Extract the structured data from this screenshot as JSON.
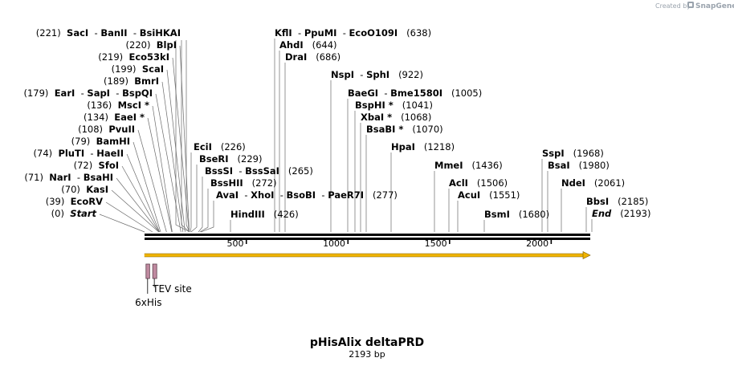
{
  "credit": {
    "text": "Created by",
    "brand": "SnapGene"
  },
  "title": "pHisAlix deltaPRD",
  "subtitle": "2193 bp",
  "sequence_length": 2193,
  "ruler_ticks": [
    {
      "bp": 500,
      "label": "500"
    },
    {
      "bp": 1000,
      "label": "1000"
    },
    {
      "bp": 1500,
      "label": "1500"
    },
    {
      "bp": 2000,
      "label": "2000"
    }
  ],
  "site_labels": [
    {
      "row": 0,
      "enzymes": [
        "Start"
      ],
      "italic": true,
      "before": "(0)",
      "after": "",
      "sites": [
        0
      ]
    },
    {
      "row": 1,
      "enzymes": [
        "EcoRV"
      ],
      "before": "(39)",
      "after": "",
      "sites": [
        39
      ]
    },
    {
      "row": 2,
      "enzymes": [
        "KasI"
      ],
      "before": "(70)",
      "after": "",
      "sites": [
        70
      ]
    },
    {
      "row": 3,
      "enzymes": [
        "NarI",
        "BsaHI"
      ],
      "before": "(71)",
      "after": "",
      "sites": [
        71
      ]
    },
    {
      "row": 4,
      "enzymes": [
        "SfoI"
      ],
      "before": "(72)",
      "after": "",
      "sites": [
        72
      ]
    },
    {
      "row": 5,
      "enzymes": [
        "PluTI",
        "HaeII"
      ],
      "before": "(74)",
      "after": "",
      "sites": [
        74
      ]
    },
    {
      "row": 6,
      "enzymes": [
        "BamHI"
      ],
      "before": "(79)",
      "after": "",
      "sites": [
        79
      ]
    },
    {
      "row": 7,
      "enzymes": [
        "PvuII"
      ],
      "before": "(108)",
      "after": "",
      "sites": [
        108
      ]
    },
    {
      "row": 8,
      "enzymes": [
        "EaeI *"
      ],
      "before": "(134)",
      "after": "",
      "sites": [
        134
      ]
    },
    {
      "row": 9,
      "enzymes": [
        "MscI *"
      ],
      "before": "(136)",
      "after": "",
      "sites": [
        136
      ]
    },
    {
      "row": 10,
      "enzymes": [
        "EarI",
        "SapI",
        "BspQI"
      ],
      "before": "(179)",
      "after": "",
      "sites": [
        179
      ]
    },
    {
      "row": 11,
      "enzymes": [
        "BmrI"
      ],
      "before": "(189)",
      "after": "",
      "sites": [
        189
      ]
    },
    {
      "row": 12,
      "enzymes": [
        "ScaI"
      ],
      "before": "(199)",
      "after": "",
      "sites": [
        199
      ]
    },
    {
      "row": 13,
      "enzymes": [
        "Eco53kI"
      ],
      "before": "(219)",
      "after": "",
      "sites": [
        219
      ]
    },
    {
      "row": 14,
      "enzymes": [
        "BlpI"
      ],
      "before": "(220)",
      "after": "",
      "sites": [
        220
      ]
    },
    {
      "row": 15,
      "enzymes": [
        "SacI",
        "BanII",
        "BsiHKAI"
      ],
      "before": "(221)",
      "after": "",
      "sites": [
        221,
        221,
        221
      ]
    },
    {
      "row": 16,
      "enzymes": [
        "HindIII"
      ],
      "before": "",
      "after": "(426)",
      "sites": [
        426
      ]
    },
    {
      "row": 17,
      "enzymes": [
        "AvaI",
        "XhoI",
        "BsoBI",
        "PaeR7I"
      ],
      "before": "",
      "after": "(277)",
      "sites": [
        277
      ]
    },
    {
      "row": 18,
      "enzymes": [
        "BssHII"
      ],
      "before": "",
      "after": "(272)",
      "sites": [
        272
      ]
    },
    {
      "row": 19,
      "enzymes": [
        "BssSI",
        "BssSaI"
      ],
      "before": "",
      "after": "(265)",
      "sites": [
        265
      ]
    },
    {
      "row": 20,
      "enzymes": [
        "BseRI"
      ],
      "before": "",
      "after": "(229)",
      "sites": [
        229
      ]
    },
    {
      "row": 21,
      "enzymes": [
        "EciI"
      ],
      "before": "",
      "after": "(226)",
      "sites": [
        226
      ]
    },
    {
      "row": 22,
      "enzymes": [
        "DraI"
      ],
      "before": "",
      "after": "(686)",
      "sites": [
        686
      ]
    },
    {
      "row": 23,
      "enzymes": [
        "AhdI"
      ],
      "before": "",
      "after": "(644)",
      "sites": [
        644
      ]
    },
    {
      "row": 24,
      "enzymes": [
        "KflI",
        "PpuMI",
        "EcoO109I"
      ],
      "before": "",
      "after": "(638)",
      "sites": [
        638
      ]
    },
    {
      "row": 25,
      "enzymes": [
        "NspI",
        "SphI"
      ],
      "before": "",
      "after": "(922)",
      "sites": [
        922
      ]
    },
    {
      "row": 26,
      "enzymes": [
        "BaeGI",
        "Bme1580I"
      ],
      "before": "",
      "after": "(1005)",
      "sites": [
        1005
      ]
    },
    {
      "row": 27,
      "enzymes": [
        "BspHI *"
      ],
      "before": "",
      "after": "(1041)",
      "sites": [
        1041
      ]
    },
    {
      "row": 28,
      "enzymes": [
        "XbaI *"
      ],
      "before": "",
      "after": "(1068)",
      "sites": [
        1068
      ]
    },
    {
      "row": 29,
      "enzymes": [
        "BsaBI *"
      ],
      "before": "",
      "after": "(1070)",
      "sites": [
        1070
      ]
    },
    {
      "row": 30,
      "enzymes": [
        "HpaI"
      ],
      "before": "",
      "after": "(1218)",
      "sites": [
        1218
      ]
    },
    {
      "row": 31,
      "enzymes": [
        "MmeI"
      ],
      "before": "",
      "after": "(1436)",
      "sites": [
        1436
      ]
    },
    {
      "row": 32,
      "enzymes": [
        "AclI"
      ],
      "before": "",
      "after": "(1506)",
      "sites": [
        1506
      ]
    },
    {
      "row": 33,
      "enzymes": [
        "AcuI"
      ],
      "before": "",
      "after": "(1551)",
      "sites": [
        1551
      ]
    },
    {
      "row": 34,
      "enzymes": [
        "BsmI"
      ],
      "before": "",
      "after": "(1680)",
      "sites": [
        1680
      ]
    },
    {
      "row": 35,
      "enzymes": [
        "SspI"
      ],
      "before": "",
      "after": "(1968)",
      "sites": [
        1968
      ]
    },
    {
      "row": 36,
      "enzymes": [
        "BsaI"
      ],
      "before": "",
      "after": "(1980)",
      "sites": [
        1980
      ]
    },
    {
      "row": 37,
      "enzymes": [
        "NdeI"
      ],
      "before": "",
      "after": "(2061)",
      "sites": [
        2061
      ]
    },
    {
      "row": 38,
      "enzymes": [
        "BbsI"
      ],
      "before": "",
      "after": "(2185)",
      "sites": [
        2185
      ]
    },
    {
      "row": 39,
      "enzymes": [
        "End"
      ],
      "italic": true,
      "before": "",
      "after": "(2193)",
      "sites": [
        2193
      ]
    }
  ],
  "features": [
    {
      "name": "6xHis",
      "start": 15,
      "end": 33,
      "color": "#c08aa0"
    },
    {
      "name": "TEV site",
      "start": 48,
      "end": 68,
      "color": "#c08aa0"
    }
  ],
  "orf": {
    "start": 1,
    "end": 2193,
    "color": "#f0b400"
  },
  "colors": {
    "backbone": "#000000",
    "leader": "#6a6a6a",
    "feature_box": "#c08aa0"
  }
}
